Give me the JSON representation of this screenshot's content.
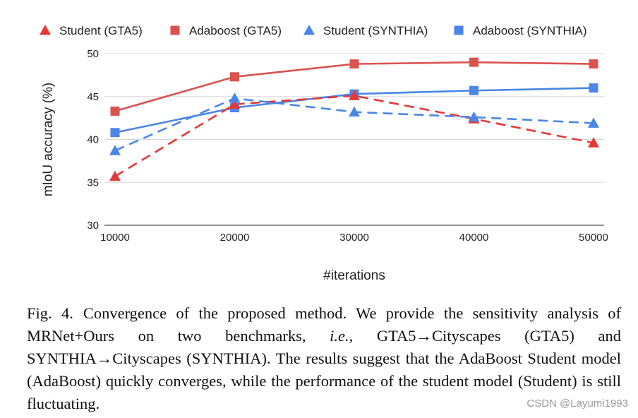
{
  "chart_data": {
    "type": "line",
    "title": "",
    "xlabel": "#iterations",
    "ylabel": "mIoU accuracy (%)",
    "x": [
      10000,
      20000,
      30000,
      40000,
      50000
    ],
    "ylim": [
      30,
      50
    ],
    "yticks": [
      30,
      35,
      40,
      45,
      50
    ],
    "grid": true,
    "legend_position": "top",
    "series": [
      {
        "name": "Student (GTA5)",
        "values": [
          35.7,
          44.1,
          45.1,
          42.4,
          39.6
        ],
        "color": "#e53935",
        "marker": "triangle",
        "dash": true
      },
      {
        "name": "Adaboost (GTA5)",
        "values": [
          43.3,
          47.3,
          48.8,
          49.0,
          48.8
        ],
        "color": "#d9534f",
        "marker": "square",
        "dash": false
      },
      {
        "name": "Student (SYNTHIA)",
        "values": [
          38.7,
          44.8,
          43.2,
          42.6,
          41.9
        ],
        "color": "#4a86e8",
        "marker": "triangle",
        "dash": true
      },
      {
        "name": "Adaboost (SYNTHIA)",
        "values": [
          40.8,
          43.7,
          45.3,
          45.7,
          46.0
        ],
        "color": "#4a86e8",
        "marker": "square",
        "dash": false
      }
    ]
  },
  "caption": {
    "label": "Fig. 4.",
    "part1": "Convergence of the proposed method. We provide the sensitivity analysis of MRNet+Ours on two benchmarks, ",
    "ie": "i.e.",
    "part2": ", GTA5→Cityscapes (GTA5) and SYNTHIA→Cityscapes (SYNTHIA). The results suggest that the AdaBoost Student model (AdaBoost) quickly converges, while the performance of the student model (Student) is still fluctuating."
  },
  "watermark": "CSDN @Layumi1993"
}
